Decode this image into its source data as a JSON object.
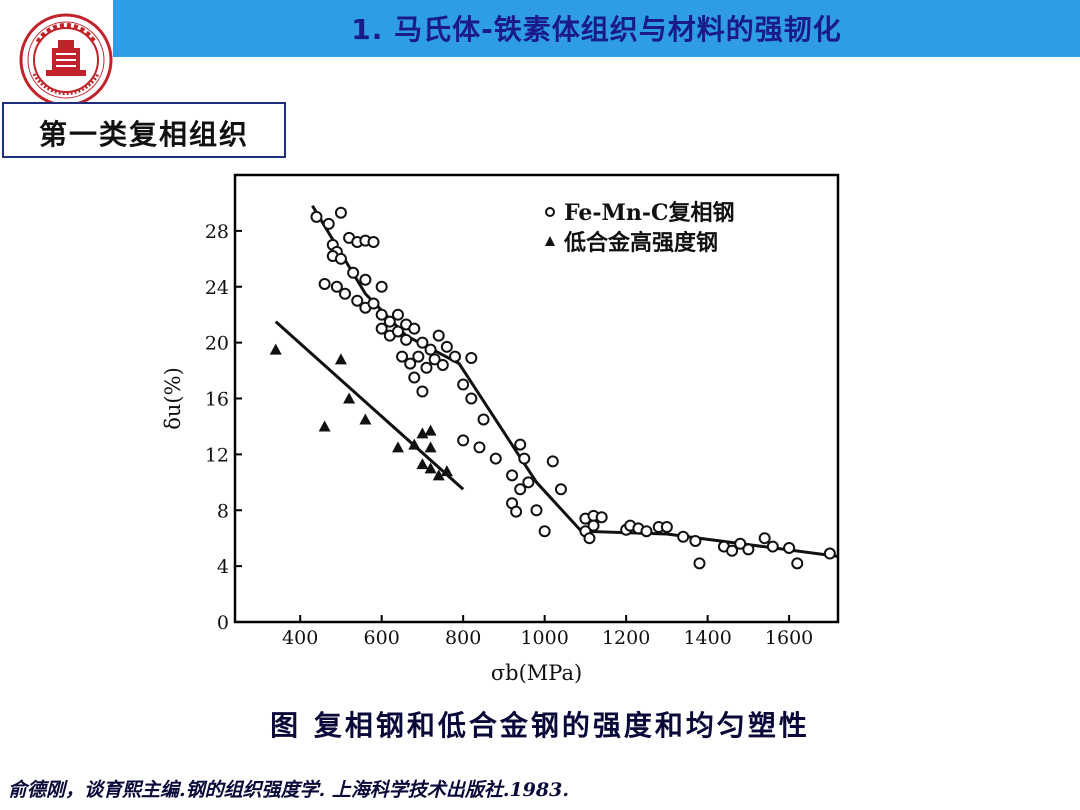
{
  "header": {
    "title": "1. 马氏体-铁素体组织与材料的强韧化",
    "logo_text": "SHANGHAI JIAO TONG UNIVERSITY"
  },
  "section": {
    "label": "第一类复相组织"
  },
  "caption": "图 复相钢和低合金钢的强度和均匀塑性",
  "reference": "俞德刚，谈育熙主编.钢的组织强度学. 上海科学技术出版社.1983.",
  "colors": {
    "header_bg": "#2e9de5",
    "header_text": "#1a1a8c",
    "box_border": "#1f2d7a"
  },
  "chart_data": {
    "type": "scatter",
    "xlabel": "σb(MPa)",
    "ylabel": "δu(%)",
    "x_ticks": [
      "400",
      "600",
      "800",
      "1000",
      "1200",
      "1400",
      "1600"
    ],
    "y_ticks": [
      "0",
      "4",
      "8",
      "12",
      "16",
      "20",
      "24",
      "28"
    ],
    "xlim": [
      240,
      1720
    ],
    "ylim": [
      0,
      32
    ],
    "legend_position": "top-right",
    "series": [
      {
        "name": "Fe-Mn-C复相钢",
        "marker": "circle",
        "points": [
          [
            440,
            29
          ],
          [
            470,
            28.5
          ],
          [
            500,
            29.3
          ],
          [
            480,
            27
          ],
          [
            490,
            26.5
          ],
          [
            520,
            27.5
          ],
          [
            540,
            27.2
          ],
          [
            560,
            27.3
          ],
          [
            580,
            27.2
          ],
          [
            480,
            26.2
          ],
          [
            500,
            26
          ],
          [
            530,
            25
          ],
          [
            560,
            24.5
          ],
          [
            600,
            24
          ],
          [
            460,
            24.2
          ],
          [
            490,
            24
          ],
          [
            510,
            23.5
          ],
          [
            540,
            23
          ],
          [
            560,
            22.5
          ],
          [
            580,
            22.8
          ],
          [
            600,
            22
          ],
          [
            620,
            21.5
          ],
          [
            640,
            22
          ],
          [
            660,
            21.3
          ],
          [
            600,
            21
          ],
          [
            620,
            20.5
          ],
          [
            640,
            20.8
          ],
          [
            660,
            20.2
          ],
          [
            680,
            21
          ],
          [
            700,
            20
          ],
          [
            720,
            19.5
          ],
          [
            740,
            20.5
          ],
          [
            760,
            19.7
          ],
          [
            650,
            19
          ],
          [
            670,
            18.5
          ],
          [
            690,
            19
          ],
          [
            710,
            18.2
          ],
          [
            730,
            18.8
          ],
          [
            750,
            18.4
          ],
          [
            780,
            19
          ],
          [
            820,
            18.9
          ],
          [
            680,
            17.5
          ],
          [
            700,
            16.5
          ],
          [
            800,
            17
          ],
          [
            820,
            16
          ],
          [
            850,
            14.5
          ],
          [
            800,
            13
          ],
          [
            840,
            12.5
          ],
          [
            880,
            11.7
          ],
          [
            940,
            12.7
          ],
          [
            950,
            11.7
          ],
          [
            920,
            10.5
          ],
          [
            940,
            9.5
          ],
          [
            960,
            10
          ],
          [
            920,
            8.5
          ],
          [
            930,
            7.9
          ],
          [
            980,
            8
          ],
          [
            1000,
            6.5
          ],
          [
            1020,
            11.5
          ],
          [
            1040,
            9.5
          ],
          [
            1100,
            7.4
          ],
          [
            1120,
            7.6
          ],
          [
            1140,
            7.5
          ],
          [
            1100,
            6.5
          ],
          [
            1120,
            6.9
          ],
          [
            1110,
            6
          ],
          [
            1200,
            6.6
          ],
          [
            1210,
            6.9
          ],
          [
            1230,
            6.7
          ],
          [
            1250,
            6.5
          ],
          [
            1280,
            6.8
          ],
          [
            1300,
            6.8
          ],
          [
            1340,
            6.1
          ],
          [
            1370,
            5.8
          ],
          [
            1380,
            4.2
          ],
          [
            1440,
            5.4
          ],
          [
            1460,
            5.1
          ],
          [
            1480,
            5.6
          ],
          [
            1500,
            5.2
          ],
          [
            1540,
            6
          ],
          [
            1560,
            5.4
          ],
          [
            1600,
            5.3
          ],
          [
            1620,
            4.2
          ],
          [
            1700,
            4.9
          ]
        ]
      },
      {
        "name": "低合金高强度钢",
        "marker": "triangle",
        "points": [
          [
            340,
            19.5
          ],
          [
            460,
            14
          ],
          [
            500,
            18.8
          ],
          [
            520,
            16
          ],
          [
            560,
            14.5
          ],
          [
            640,
            12.5
          ],
          [
            680,
            12.7
          ],
          [
            700,
            13.5
          ],
          [
            720,
            13.7
          ],
          [
            700,
            11.3
          ],
          [
            720,
            11
          ],
          [
            740,
            10.5
          ],
          [
            760,
            10.8
          ],
          [
            720,
            12.5
          ]
        ]
      }
    ],
    "trend_lines": [
      {
        "series": "Fe-Mn-C复相钢",
        "points": [
          [
            430,
            29.8
          ],
          [
            560,
            23.5
          ],
          [
            660,
            20.5
          ],
          [
            790,
            18.5
          ],
          [
            980,
            10
          ],
          [
            1090,
            6.5
          ],
          [
            1300,
            6.3
          ],
          [
            1720,
            4.7
          ]
        ]
      },
      {
        "series": "低合金高强度钢",
        "points": [
          [
            340,
            21.5
          ],
          [
            800,
            9.5
          ]
        ]
      }
    ]
  }
}
